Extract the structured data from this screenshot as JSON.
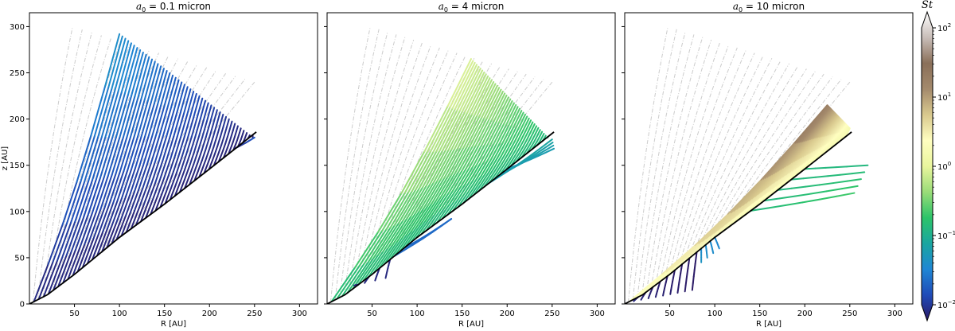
{
  "chart_data": {
    "type": "line",
    "panels": [
      {
        "title_main": "a",
        "title_sub": "0",
        "title_rest": " = 0.1 micron",
        "xlabel": "R [AU]",
        "ylabel": "z [AU]",
        "xlim": [
          0,
          320
        ],
        "ylim": [
          0,
          315
        ],
        "xticks": [
          "50",
          "100",
          "150",
          "200",
          "250",
          "300"
        ],
        "yticks": [
          "0",
          "50",
          "100",
          "150",
          "200",
          "250",
          "300"
        ],
        "disk_surface": [
          [
            0,
            0
          ],
          [
            20,
            10
          ],
          [
            50,
            32
          ],
          [
            100,
            72
          ],
          [
            150,
            108
          ],
          [
            200,
            146
          ],
          [
            252,
            186
          ]
        ],
        "guide_lines": {
          "color": "#cccccc",
          "count": 20
        },
        "trajectory_families": [
          {
            "start_r": [
              5,
              248
            ],
            "top_r": [
              100,
              248
            ],
            "top_z": [
              292,
              180
            ],
            "count": 46,
            "st_log10_top": -1.2,
            "st_log10_bottom": -1.95
          },
          {
            "note_free": true,
            "start_r": [
              230,
              252
            ],
            "end_r": [
              250,
              250
            ],
            "end_z": [
              180,
              178
            ],
            "count": 1,
            "st_log10_top": -1.6,
            "st_log10_bottom": -1.9
          }
        ]
      },
      {
        "title_main": "a",
        "title_sub": "0",
        "title_rest": " = 4 micron",
        "xlabel": "R [AU]",
        "ylabel": "",
        "xlim": [
          0,
          320
        ],
        "ylim": [
          0,
          315
        ],
        "xticks": [
          "50",
          "100",
          "150",
          "200",
          "250",
          "300"
        ],
        "yticks": [],
        "disk_surface": [
          [
            0,
            0
          ],
          [
            20,
            10
          ],
          [
            50,
            32
          ],
          [
            100,
            72
          ],
          [
            150,
            108
          ],
          [
            200,
            146
          ],
          [
            252,
            186
          ]
        ],
        "guide_lines": {
          "color": "#cccccc",
          "count": 22
        },
        "trajectory_families": [
          {
            "start_r": [
              5,
              245
            ],
            "top_r": [
              160,
              245
            ],
            "top_z": [
              265,
              180
            ],
            "count": 42,
            "st_log10_top": 0.0,
            "st_log10_bottom": -0.8
          },
          {
            "start_r": [
              180,
              200
            ],
            "end_r": [
              250,
              252
            ],
            "end_z": [
              178,
              168
            ],
            "count": 4,
            "st_log10_top": -1.0,
            "st_log10_bottom": -1.1
          },
          {
            "start_r": [
              75,
              85
            ],
            "end_r": [
              138,
              138
            ],
            "end_z": [
              92,
              92
            ],
            "count": 2,
            "st_log10_top": -1.5,
            "st_log10_bottom": -1.5
          },
          {
            "start_r": [
              35,
              70
            ],
            "end_r": [
              30,
              65
            ],
            "end_z": [
              20,
              28
            ],
            "count": 4,
            "st_log10_top": -1.9,
            "st_log10_bottom": -1.9
          }
        ]
      },
      {
        "title_main": "a",
        "title_sub": "0",
        "title_rest": " = 10 micron",
        "xlabel": "R [AU]",
        "ylabel": "",
        "xlim": [
          0,
          320
        ],
        "ylim": [
          0,
          315
        ],
        "xticks": [
          "50",
          "100",
          "150",
          "200",
          "250",
          "300"
        ],
        "yticks": [],
        "disk_surface": [
          [
            0,
            0
          ],
          [
            20,
            10
          ],
          [
            50,
            32
          ],
          [
            100,
            72
          ],
          [
            150,
            108
          ],
          [
            200,
            146
          ],
          [
            252,
            186
          ]
        ],
        "guide_lines": {
          "color": "#cccccc",
          "count": 22
        },
        "trajectory_families": [
          {
            "start_r": [
              5,
              245
            ],
            "top_r": [
              225,
              250
            ],
            "top_z": [
              215,
              190
            ],
            "count": 40,
            "st_log10_top": 1.2,
            "st_log10_bottom": 0.2
          },
          {
            "start_r": [
              140,
              200
            ],
            "end_r": [
              255,
              270
            ],
            "end_z": [
              120,
              150
            ],
            "count": 5,
            "st_log10_top": -0.6,
            "st_log10_bottom": -0.8
          },
          {
            "start_r": [
              85,
              100
            ],
            "end_r": [
              85,
              105
            ],
            "end_z": [
              45,
              60
            ],
            "count": 4,
            "st_log10_top": -1.2,
            "st_log10_bottom": -1.3
          },
          {
            "start_r": [
              15,
              80
            ],
            "end_r": [
              10,
              75
            ],
            "end_z": [
              3,
              15
            ],
            "count": 9,
            "st_log10_top": -1.9,
            "st_log10_bottom": -2.0
          }
        ]
      }
    ],
    "colorbar": {
      "label": "St",
      "scale": "log",
      "range": [
        0.01,
        100
      ],
      "ticks": [
        {
          "base": "10",
          "exp": "2",
          "log": 2
        },
        {
          "base": "10",
          "exp": "1",
          "log": 1
        },
        {
          "base": "10",
          "exp": "0",
          "log": 0
        },
        {
          "base": "10",
          "exp": "−1",
          "log": -1
        },
        {
          "base": "10",
          "exp": "−2",
          "log": -2
        }
      ],
      "colormap": [
        "#2b1a66",
        "#1f4bb8",
        "#1f86d4",
        "#1aa6a0",
        "#2cc469",
        "#9adc78",
        "#e9f59d",
        "#fffec0",
        "#d9c98e",
        "#a48a6c",
        "#8a6f59",
        "#c8bdb8",
        "#ffffff"
      ]
    }
  }
}
